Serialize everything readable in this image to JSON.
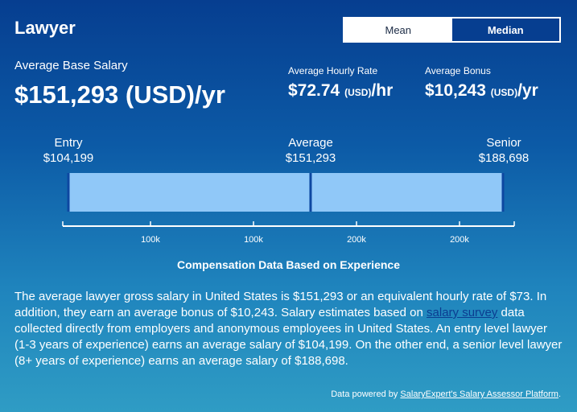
{
  "header": {
    "title": "Lawyer"
  },
  "toggle": {
    "mean_label": "Mean",
    "median_label": "Median"
  },
  "base_salary": {
    "label": "Average Base Salary",
    "value": "$151,293 (USD)/yr"
  },
  "hourly": {
    "label": "Average Hourly Rate",
    "amount": "$72.74",
    "unit": "(USD)",
    "suffix": "/hr"
  },
  "bonus": {
    "label": "Average Bonus",
    "amount": "$10,243",
    "unit": "(USD)",
    "suffix": "/yr"
  },
  "levels": {
    "entry": {
      "label": "Entry",
      "value": "$104,199"
    },
    "average": {
      "label": "Average",
      "value": "$151,293"
    },
    "senior": {
      "label": "Senior",
      "value": "$188,698"
    }
  },
  "chart_data": {
    "type": "bar",
    "title": "Compensation Data Based on Experience",
    "segments": [
      {
        "label": "Entry",
        "start": 104199,
        "end": 151293
      },
      {
        "label": "Senior",
        "start": 151293,
        "end": 188698
      }
    ],
    "markers": {
      "entry": 104199,
      "average": 151293,
      "senior": 188698
    },
    "x_ticks": [
      "100k",
      "100k",
      "200k",
      "200k"
    ],
    "colors": {
      "bar": "#90c8f8",
      "edge": "#0d47a1",
      "axis": "#ffffff"
    }
  },
  "description": {
    "before_link": "The average lawyer gross salary in United States is $151,293 or an equivalent hourly rate of $73. In addition, they earn an average bonus of $10,243. Salary estimates based on ",
    "link": "salary survey",
    "after_link": " data collected directly from employers and anonymous employees in United States. An entry level lawyer (1-3 years of experience) earns an average salary of $104,199. On the other end, a senior level lawyer (8+ years of experience) earns an average salary of $188,698."
  },
  "footer": {
    "prefix": "Data powered by ",
    "link": "SalaryExpert's Salary Assessor Platform",
    "suffix": "."
  }
}
